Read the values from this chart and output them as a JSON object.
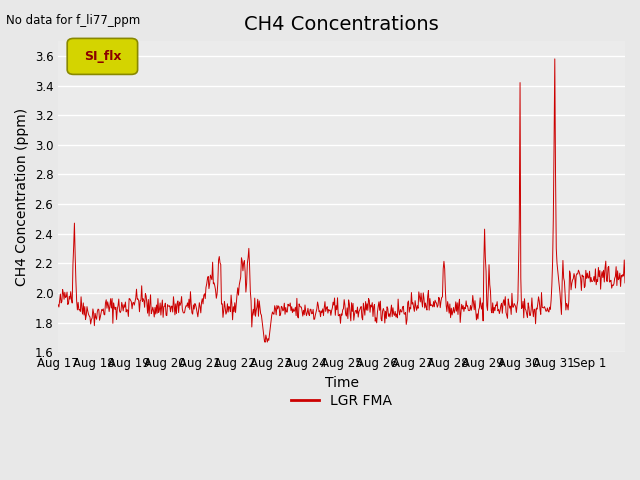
{
  "title": "CH4 Concentrations",
  "xlabel": "Time",
  "ylabel": "CH4 Concentration (ppm)",
  "top_left_text": "No data for f_li77_ppm",
  "legend_label": "LGR FMA",
  "legend_label2": "SI_flx",
  "ylim": [
    1.6,
    3.7
  ],
  "yticks": [
    1.6,
    1.8,
    2.0,
    2.2,
    2.4,
    2.6,
    2.8,
    3.0,
    3.2,
    3.4,
    3.6
  ],
  "xtick_labels": [
    "Aug 17",
    "Aug 18",
    "Aug 19",
    "Aug 20",
    "Aug 21",
    "Aug 22",
    "Aug 23",
    "Aug 24",
    "Aug 25",
    "Aug 26",
    "Aug 27",
    "Aug 28",
    "Aug 29",
    "Aug 30",
    "Aug 31",
    "Sep 1"
  ],
  "line_color": "#cc0000",
  "bg_color": "#e8e8e8",
  "plot_bg_color": "#ebebeb",
  "grid_color": "#ffffff",
  "title_fontsize": 14,
  "label_fontsize": 10,
  "tick_fontsize": 8.5
}
